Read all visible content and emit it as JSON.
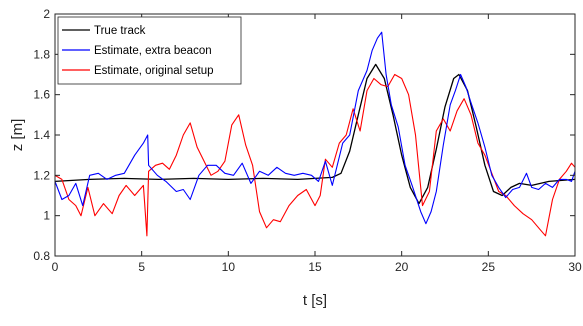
{
  "chart_data": {
    "type": "line",
    "title": "",
    "xlabel": "t [s]",
    "ylabel": "z [m]",
    "xlim": [
      0,
      30
    ],
    "ylim": [
      0.8,
      2
    ],
    "xticks": [
      0,
      5,
      10,
      15,
      20,
      25,
      30
    ],
    "xtick_labels": [
      "0",
      "5",
      "10",
      "15",
      "20",
      "25",
      "30"
    ],
    "yticks": [
      0.8,
      1,
      1.2,
      1.4,
      1.6,
      1.8,
      2
    ],
    "ytick_labels": [
      "0.8",
      "1",
      "1.2",
      "1.4",
      "1.6",
      "1.8",
      "2"
    ],
    "grid": false,
    "legend_position": "top-left",
    "series": [
      {
        "name": "True track",
        "color": "#000000",
        "points": [
          [
            0,
            1.17
          ],
          [
            2,
            1.18
          ],
          [
            4,
            1.185
          ],
          [
            6,
            1.18
          ],
          [
            8,
            1.185
          ],
          [
            10,
            1.18
          ],
          [
            12,
            1.185
          ],
          [
            14,
            1.18
          ],
          [
            15,
            1.185
          ],
          [
            16,
            1.19
          ],
          [
            16.5,
            1.21
          ],
          [
            17,
            1.32
          ],
          [
            17.5,
            1.5
          ],
          [
            18,
            1.68
          ],
          [
            18.5,
            1.75
          ],
          [
            19,
            1.68
          ],
          [
            19.5,
            1.5
          ],
          [
            20,
            1.3
          ],
          [
            20.5,
            1.14
          ],
          [
            21,
            1.06
          ],
          [
            21.5,
            1.14
          ],
          [
            22,
            1.33
          ],
          [
            22.5,
            1.54
          ],
          [
            23,
            1.68
          ],
          [
            23.3,
            1.7
          ],
          [
            23.8,
            1.62
          ],
          [
            24.3,
            1.44
          ],
          [
            24.8,
            1.25
          ],
          [
            25.3,
            1.12
          ],
          [
            25.8,
            1.1
          ],
          [
            26.3,
            1.14
          ],
          [
            26.8,
            1.16
          ],
          [
            27.5,
            1.15
          ],
          [
            28.5,
            1.17
          ],
          [
            30,
            1.18
          ]
        ]
      },
      {
        "name": "Estimate, extra beacon",
        "color": "#0000ff",
        "points": [
          [
            0,
            1.17
          ],
          [
            0.4,
            1.08
          ],
          [
            0.8,
            1.1
          ],
          [
            1.2,
            1.16
          ],
          [
            1.6,
            1.05
          ],
          [
            2,
            1.2
          ],
          [
            2.5,
            1.21
          ],
          [
            3,
            1.18
          ],
          [
            3.5,
            1.2
          ],
          [
            4,
            1.21
          ],
          [
            4.6,
            1.3
          ],
          [
            5.1,
            1.36
          ],
          [
            5.35,
            1.4
          ],
          [
            5.4,
            1.25
          ],
          [
            5.9,
            1.2
          ],
          [
            6.4,
            1.17
          ],
          [
            7,
            1.12
          ],
          [
            7.4,
            1.13
          ],
          [
            7.8,
            1.08
          ],
          [
            8.3,
            1.2
          ],
          [
            8.8,
            1.25
          ],
          [
            9.3,
            1.25
          ],
          [
            9.8,
            1.21
          ],
          [
            10.3,
            1.2
          ],
          [
            10.8,
            1.26
          ],
          [
            11.3,
            1.16
          ],
          [
            11.8,
            1.22
          ],
          [
            12.3,
            1.2
          ],
          [
            12.8,
            1.24
          ],
          [
            13.3,
            1.21
          ],
          [
            13.8,
            1.2
          ],
          [
            14.3,
            1.21
          ],
          [
            14.8,
            1.2
          ],
          [
            15.2,
            1.17
          ],
          [
            15.6,
            1.27
          ],
          [
            16,
            1.15
          ],
          [
            16.6,
            1.36
          ],
          [
            17,
            1.4
          ],
          [
            17.5,
            1.62
          ],
          [
            18,
            1.72
          ],
          [
            18.3,
            1.82
          ],
          [
            18.6,
            1.88
          ],
          [
            18.85,
            1.91
          ],
          [
            19.1,
            1.7
          ],
          [
            19.4,
            1.55
          ],
          [
            19.8,
            1.44
          ],
          [
            20.2,
            1.25
          ],
          [
            20.6,
            1.15
          ],
          [
            21.1,
            1.02
          ],
          [
            21.4,
            0.96
          ],
          [
            21.7,
            1.02
          ],
          [
            22,
            1.12
          ],
          [
            22.4,
            1.35
          ],
          [
            22.8,
            1.55
          ],
          [
            23.1,
            1.62
          ],
          [
            23.4,
            1.7
          ],
          [
            23.7,
            1.64
          ],
          [
            24,
            1.56
          ],
          [
            24.4,
            1.46
          ],
          [
            24.8,
            1.34
          ],
          [
            25.2,
            1.2
          ],
          [
            25.6,
            1.14
          ],
          [
            26,
            1.09
          ],
          [
            26.4,
            1.13
          ],
          [
            26.8,
            1.14
          ],
          [
            27.2,
            1.21
          ],
          [
            27.5,
            1.14
          ],
          [
            27.9,
            1.13
          ],
          [
            28.3,
            1.16
          ],
          [
            28.7,
            1.14
          ],
          [
            29.1,
            1.18
          ],
          [
            29.5,
            1.18
          ],
          [
            29.8,
            1.17
          ],
          [
            30,
            1.22
          ]
        ]
      },
      {
        "name": "Estimate, original setup",
        "color": "#ff0000",
        "points": [
          [
            0,
            1.2
          ],
          [
            0.4,
            1.18
          ],
          [
            0.8,
            1.08
          ],
          [
            1.2,
            1.05
          ],
          [
            1.5,
            1.0
          ],
          [
            1.9,
            1.14
          ],
          [
            2.3,
            1.0
          ],
          [
            2.8,
            1.06
          ],
          [
            3.3,
            1.01
          ],
          [
            3.7,
            1.1
          ],
          [
            4.1,
            1.15
          ],
          [
            4.6,
            1.1
          ],
          [
            5.1,
            1.15
          ],
          [
            5.3,
            0.9
          ],
          [
            5.4,
            1.22
          ],
          [
            5.8,
            1.25
          ],
          [
            6.2,
            1.26
          ],
          [
            6.6,
            1.23
          ],
          [
            7,
            1.3
          ],
          [
            7.4,
            1.4
          ],
          [
            7.8,
            1.46
          ],
          [
            8.2,
            1.34
          ],
          [
            8.6,
            1.27
          ],
          [
            9,
            1.2
          ],
          [
            9.4,
            1.22
          ],
          [
            9.8,
            1.27
          ],
          [
            10.2,
            1.45
          ],
          [
            10.6,
            1.5
          ],
          [
            11,
            1.35
          ],
          [
            11.4,
            1.25
          ],
          [
            11.8,
            1.02
          ],
          [
            12.2,
            0.94
          ],
          [
            12.6,
            0.98
          ],
          [
            13,
            0.97
          ],
          [
            13.5,
            1.05
          ],
          [
            14,
            1.1
          ],
          [
            14.5,
            1.13
          ],
          [
            15,
            1.05
          ],
          [
            15.3,
            1.1
          ],
          [
            15.6,
            1.28
          ],
          [
            16,
            1.24
          ],
          [
            16.4,
            1.36
          ],
          [
            16.8,
            1.4
          ],
          [
            17.2,
            1.53
          ],
          [
            17.6,
            1.42
          ],
          [
            18,
            1.62
          ],
          [
            18.4,
            1.68
          ],
          [
            18.8,
            1.65
          ],
          [
            19.2,
            1.64
          ],
          [
            19.6,
            1.7
          ],
          [
            20,
            1.68
          ],
          [
            20.4,
            1.6
          ],
          [
            20.8,
            1.4
          ],
          [
            21.2,
            1.05
          ],
          [
            21.6,
            1.12
          ],
          [
            22,
            1.42
          ],
          [
            22.4,
            1.48
          ],
          [
            22.8,
            1.42
          ],
          [
            23.2,
            1.52
          ],
          [
            23.6,
            1.58
          ],
          [
            24,
            1.5
          ],
          [
            24.4,
            1.36
          ],
          [
            24.8,
            1.3
          ],
          [
            25.2,
            1.21
          ],
          [
            25.6,
            1.12
          ],
          [
            26,
            1.1
          ],
          [
            26.5,
            1.05
          ],
          [
            27,
            1.01
          ],
          [
            27.5,
            0.98
          ],
          [
            28,
            0.93
          ],
          [
            28.3,
            0.9
          ],
          [
            28.7,
            1.08
          ],
          [
            29.1,
            1.18
          ],
          [
            29.5,
            1.22
          ],
          [
            29.8,
            1.26
          ],
          [
            30,
            1.24
          ]
        ]
      }
    ]
  }
}
